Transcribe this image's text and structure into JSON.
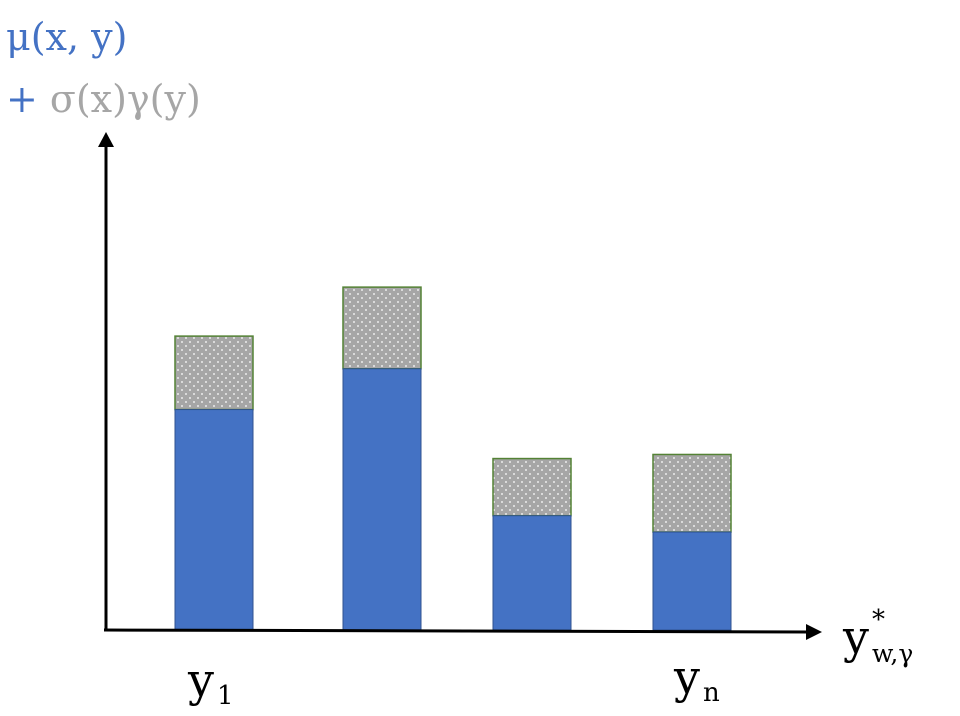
{
  "chart_data": {
    "type": "bar",
    "stacked": true,
    "categories": [
      "",
      "",
      "",
      ""
    ],
    "x_tick_labels": {
      "first": {
        "base": "y",
        "sub": "1"
      },
      "last": {
        "base": "y",
        "sub": "n"
      }
    },
    "series": [
      {
        "name": "μ(x, y)",
        "values": [
          5.4,
          6.4,
          2.8,
          2.4
        ]
      },
      {
        "name": "+ σ(x)γ(y)",
        "values": [
          1.8,
          2.0,
          1.4,
          1.9
        ]
      }
    ],
    "ylim": [
      0,
      12.2
    ],
    "grid": false,
    "legend": "top-left",
    "ylabel_line1": "μ(x, y)",
    "ylabel_line2": "+ σ(x)γ(y)",
    "xlabel": {
      "base": "y",
      "sup": "*",
      "sub": "w,γ"
    },
    "colors": {
      "mean": "#4472C4",
      "mean_border": "#2F528F",
      "uncertainty": "#A6A6A6",
      "uncertainty_border": "#548235",
      "dot": "#FFFFFF",
      "axis": "#000000",
      "ylabel_line1": "#4472C4",
      "ylabel_line2_plus": "#4472C4",
      "ylabel_line2_rest": "#A6A6A6"
    }
  }
}
